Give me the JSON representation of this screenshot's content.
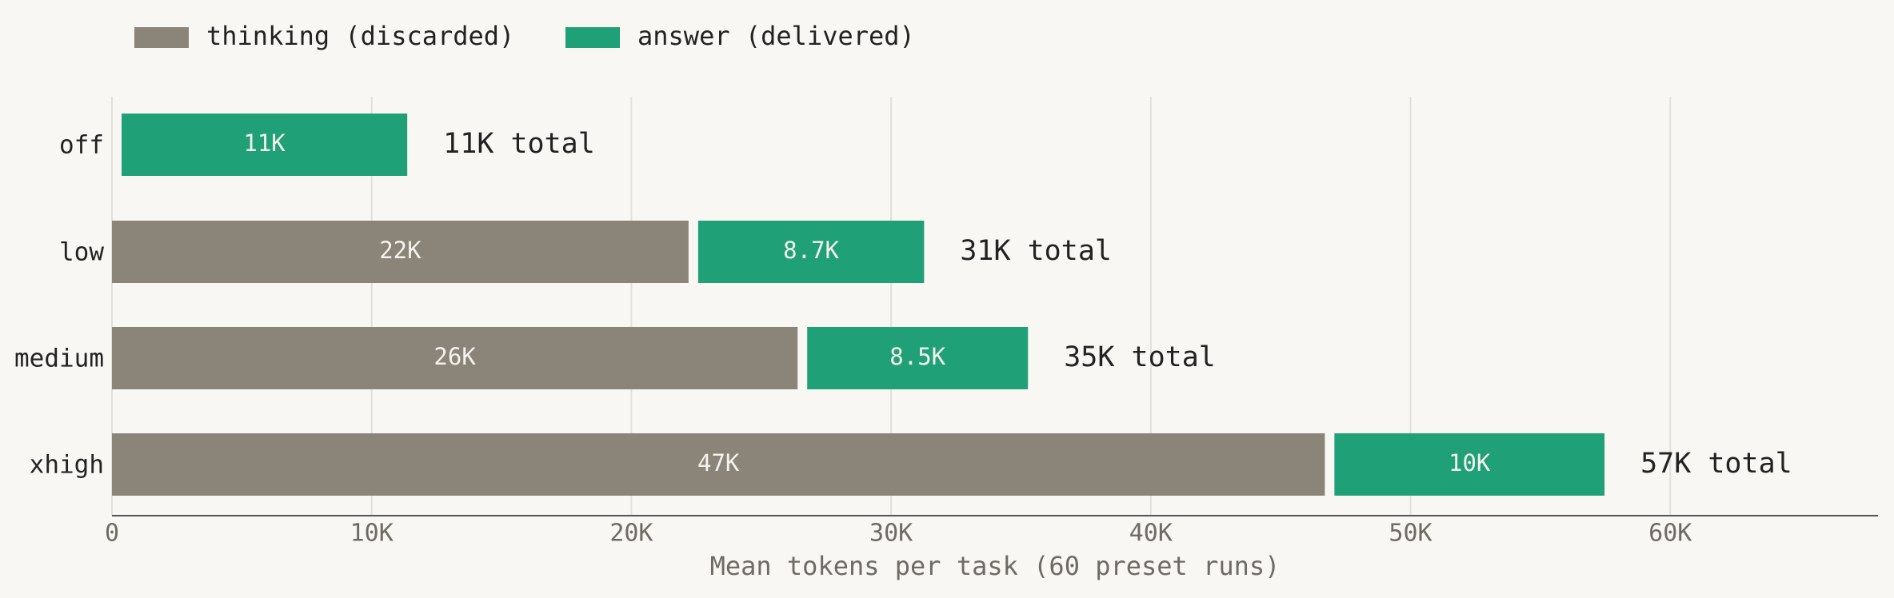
{
  "chart_data": {
    "type": "stacked-barh",
    "categories": [
      "off",
      "low",
      "medium",
      "xhigh"
    ],
    "series": [
      {
        "name": "thinking (discarded)",
        "color": "#8b8478",
        "values": [
          0,
          22200,
          26400,
          46700
        ],
        "value_labels": [
          null,
          "22K",
          "26K",
          "47K"
        ]
      },
      {
        "name": "answer (delivered)",
        "color": "#1fa077",
        "values": [
          11000,
          8700,
          8500,
          10400
        ],
        "value_labels": [
          "11K",
          "8.7K",
          "8.5K",
          "10K"
        ]
      }
    ],
    "total_labels": [
      "11K total",
      "31K total",
      "35K total",
      "57K total"
    ],
    "xlabel": "Mean tokens per task (60 preset runs)",
    "xlim": [
      0,
      68000
    ],
    "xticks": [
      0,
      {
        "value": 10000,
        "label": "10K"
      },
      {
        "value": 20000,
        "label": "20K"
      },
      {
        "value": 30000,
        "label": "30K"
      },
      {
        "value": 40000,
        "label": "40K"
      },
      {
        "value": 50000,
        "label": "50K"
      },
      {
        "value": 60000,
        "label": "60K"
      }
    ],
    "grid": true
  }
}
